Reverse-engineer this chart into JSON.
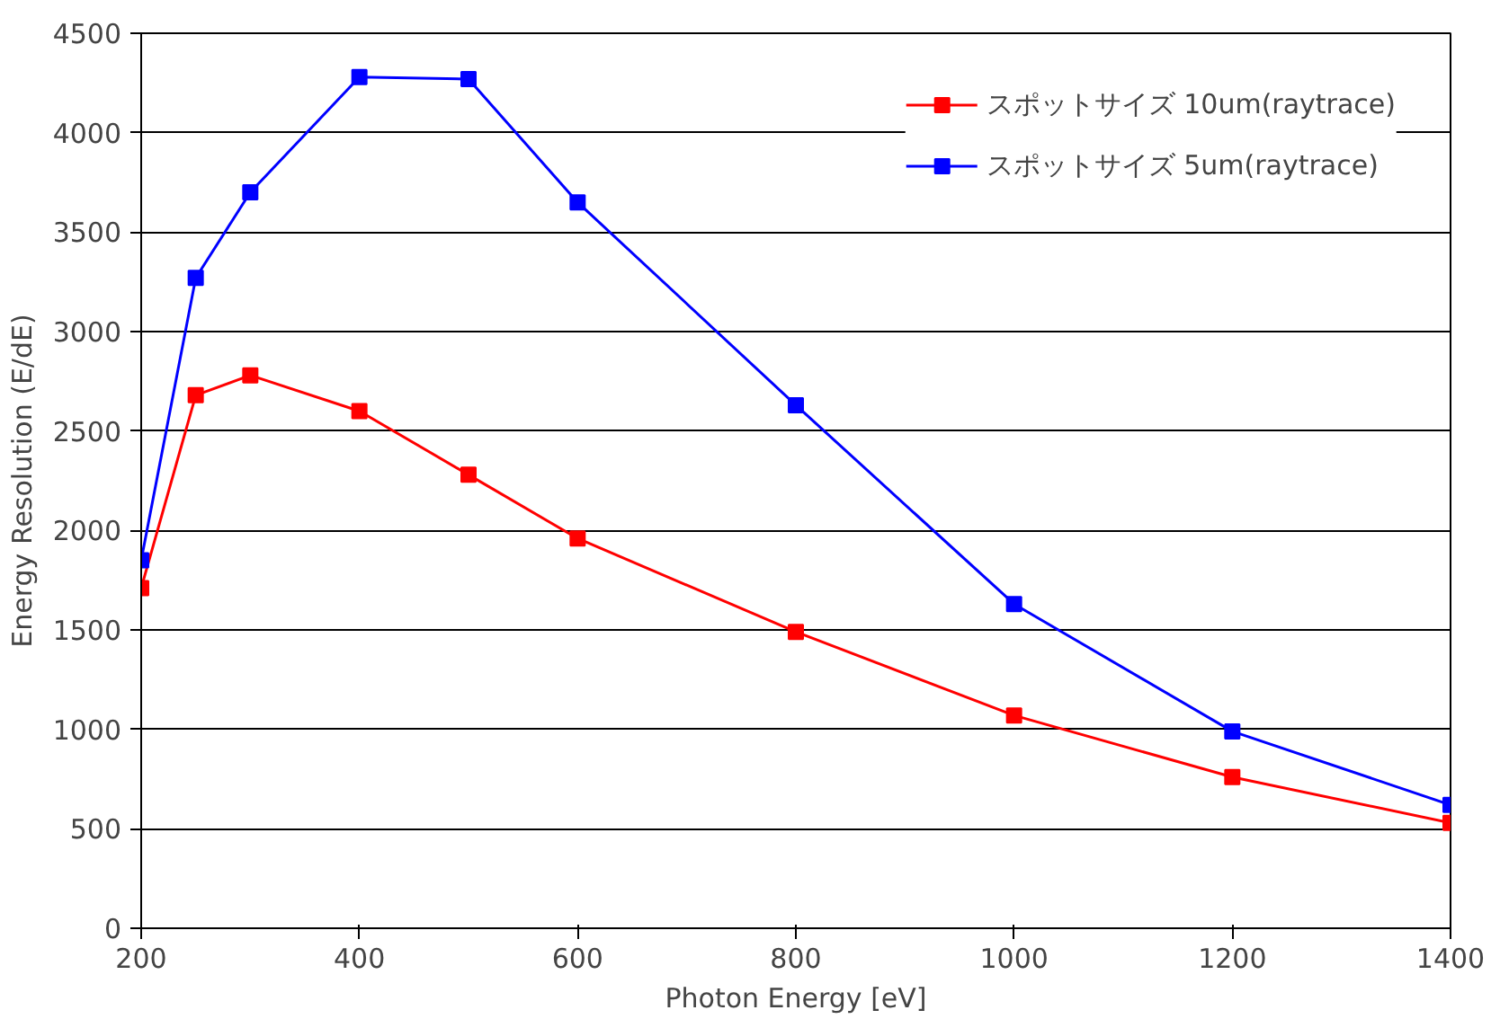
{
  "chart_data": {
    "type": "line",
    "xlabel": "Photon Energy [eV]",
    "ylabel": "Energy Resolution (E/dE)",
    "x": [
      200,
      250,
      300,
      400,
      500,
      600,
      800,
      1000,
      1200,
      1400
    ],
    "series": [
      {
        "name": "スポットサイズ 10um(raytrace)",
        "color": "#ff0000",
        "values": [
          1710,
          2680,
          2780,
          2600,
          2280,
          1960,
          1490,
          1070,
          760,
          530
        ]
      },
      {
        "name": "スポットサイズ 5um(raytrace)",
        "color": "#0000ff",
        "values": [
          1850,
          3270,
          3700,
          4280,
          4270,
          3650,
          2630,
          1630,
          990,
          620
        ]
      }
    ],
    "xlim": [
      200,
      1400
    ],
    "xticks": [
      200,
      400,
      600,
      800,
      1000,
      1200,
      1400
    ],
    "ylim": [
      0,
      4500
    ],
    "yticks": [
      0,
      500,
      1000,
      1500,
      2000,
      2500,
      3000,
      3500,
      4000,
      4500
    ],
    "grid": "y",
    "legend": "top right",
    "marker": "square",
    "line_style": "solid"
  }
}
